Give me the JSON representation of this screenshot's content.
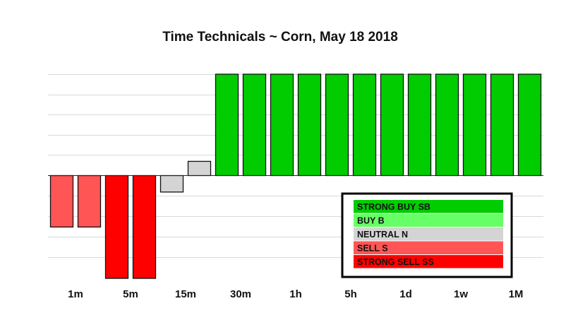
{
  "chart_data": {
    "type": "bar",
    "title": "Time Technicals ~  Corn, May 18 2018",
    "xlabel": "",
    "ylabel": "",
    "categories": [
      "1m",
      "5m",
      "15m",
      "30m",
      "1h",
      "5h",
      "1d",
      "1w",
      "1M"
    ],
    "ylim": [
      -5,
      5
    ],
    "grid": true,
    "bars": [
      {
        "group": "1m",
        "value": -2.5,
        "signal": "S"
      },
      {
        "group": "1m",
        "value": -2.5,
        "signal": "S"
      },
      {
        "group": "5m",
        "value": -5,
        "signal": "SS"
      },
      {
        "group": "5m",
        "value": -5,
        "signal": "SS"
      },
      {
        "group": "15m",
        "value": -0.8,
        "signal": "N"
      },
      {
        "group": "15m",
        "value": 0.7,
        "signal": "N"
      },
      {
        "group": "30m",
        "value": 5,
        "signal": "SB"
      },
      {
        "group": "30m",
        "value": 5,
        "signal": "SB"
      },
      {
        "group": "1h",
        "value": 5,
        "signal": "SB"
      },
      {
        "group": "1h",
        "value": 5,
        "signal": "SB"
      },
      {
        "group": "5h",
        "value": 5,
        "signal": "SB"
      },
      {
        "group": "5h",
        "value": 5,
        "signal": "SB"
      },
      {
        "group": "1d",
        "value": 5,
        "signal": "SB"
      },
      {
        "group": "1d",
        "value": 5,
        "signal": "SB"
      },
      {
        "group": "1w",
        "value": 5,
        "signal": "SB"
      },
      {
        "group": "1w",
        "value": 5,
        "signal": "SB"
      },
      {
        "group": "1M",
        "value": 5,
        "signal": "SB"
      },
      {
        "group": "1M",
        "value": 5,
        "signal": "SB"
      }
    ],
    "legend": {
      "position": "bottom-right",
      "items": [
        {
          "label": "STRONG BUY   SB",
          "code": "SB",
          "color": "#00cc00"
        },
        {
          "label": "BUY   B",
          "code": "B",
          "color": "#66ff66"
        },
        {
          "label": "NEUTRAL   N",
          "code": "N",
          "color": "#d4d4d4"
        },
        {
          "label": "SELL   S",
          "code": "S",
          "color": "#ff5555"
        },
        {
          "label": "STRONG SELL   SS",
          "code": "SS",
          "color": "#ff0000"
        }
      ]
    }
  }
}
